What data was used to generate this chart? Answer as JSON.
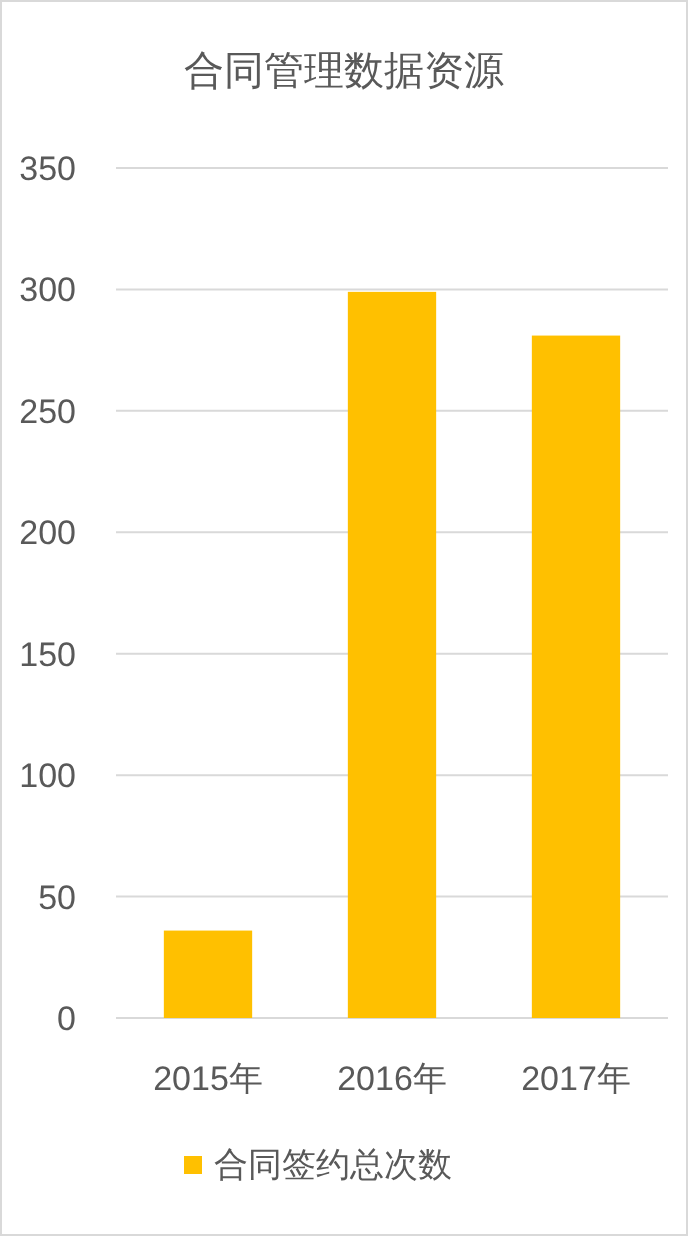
{
  "chart_data": {
    "type": "bar",
    "title": "合同管理数据资源",
    "categories": [
      "2015年",
      "2016年",
      "2017年"
    ],
    "series": [
      {
        "name": "合同签约总次数",
        "color": "#ffc000",
        "values": [
          36,
          299,
          281
        ]
      }
    ],
    "ylim": [
      0,
      350
    ],
    "yticks": [
      0,
      50,
      100,
      150,
      200,
      250,
      300,
      350
    ],
    "grid": "y",
    "legend": "bottom"
  }
}
